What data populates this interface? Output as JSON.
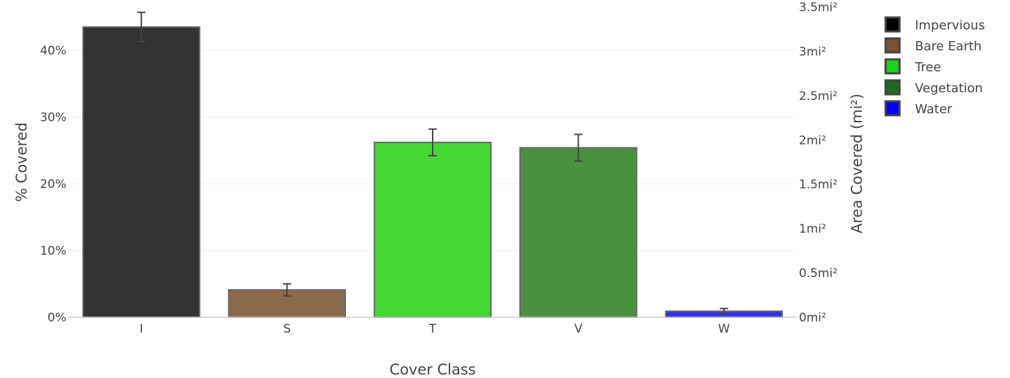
{
  "chart_data": {
    "type": "bar",
    "xlabel": "Cover Class",
    "ylabel": "% Covered",
    "y2label": "Area Covered (mi²)",
    "categories": [
      "I",
      "S",
      "T",
      "V",
      "W"
    ],
    "values": [
      43.5,
      4.1,
      26.2,
      25.4,
      0.9
    ],
    "error_low": [
      41.3,
      3.2,
      24.2,
      23.4,
      0.6
    ],
    "error_high": [
      45.7,
      5.0,
      28.2,
      27.4,
      1.3
    ],
    "ylim": [
      0,
      46.5
    ],
    "y_ticks": [
      0,
      10,
      20,
      30,
      40
    ],
    "y_tick_labels": [
      "0%",
      "10%",
      "20%",
      "30%",
      "40%"
    ],
    "y2lim": [
      0,
      3.5
    ],
    "y2_ticks": [
      0,
      0.5,
      1,
      1.5,
      2,
      2.5,
      3,
      3.5
    ],
    "y2_tick_labels": [
      "0mi²",
      "0.5mi²",
      "1mi²",
      "1.5mi²",
      "2mi²",
      "2.5mi²",
      "3mi²",
      "3.5mi²"
    ],
    "colors": [
      "#333333",
      "#8b6a4b",
      "#44d633",
      "#4a913f",
      "#3333ee"
    ],
    "legend": [
      {
        "label": "Impervious",
        "color": "#000000"
      },
      {
        "label": "Bare Earth",
        "color": "#7a5230"
      },
      {
        "label": "Tree",
        "color": "#1fd11f"
      },
      {
        "label": "Vegetation",
        "color": "#1f6b1f"
      },
      {
        "label": "Water",
        "color": "#0000ff"
      }
    ],
    "legend_position": "top-right",
    "grid": true
  }
}
